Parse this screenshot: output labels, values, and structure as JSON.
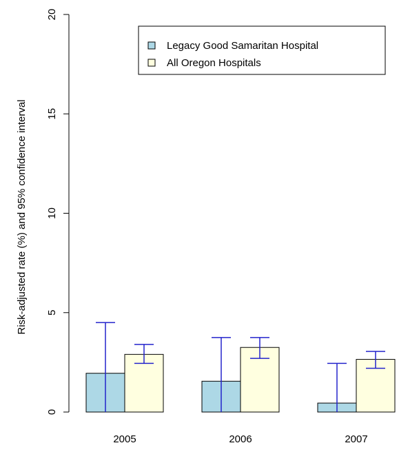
{
  "chart_data": {
    "type": "bar",
    "categories": [
      "2005",
      "2006",
      "2007"
    ],
    "series": [
      {
        "name": "Legacy Good Samaritan Hospital",
        "color": "#add8e6",
        "values": [
          1.95,
          1.55,
          0.45
        ],
        "ci_low": [
          0,
          0,
          0
        ],
        "ci_high": [
          4.5,
          3.75,
          2.45
        ]
      },
      {
        "name": "All Oregon Hospitals",
        "color": "#ffffe0",
        "values": [
          2.9,
          3.25,
          2.65
        ],
        "ci_low": [
          2.45,
          2.7,
          2.2
        ],
        "ci_high": [
          3.4,
          3.75,
          3.05
        ]
      }
    ],
    "ylabel": "Risk-adjusted rate (%) and 95% confidence interval",
    "xlabel": "",
    "ylim": [
      0,
      20
    ],
    "yticks": [
      "0",
      "5",
      "10",
      "15",
      "20"
    ],
    "grid": false,
    "legend_position": "top-right",
    "errorbar_color": "#2222cc"
  }
}
